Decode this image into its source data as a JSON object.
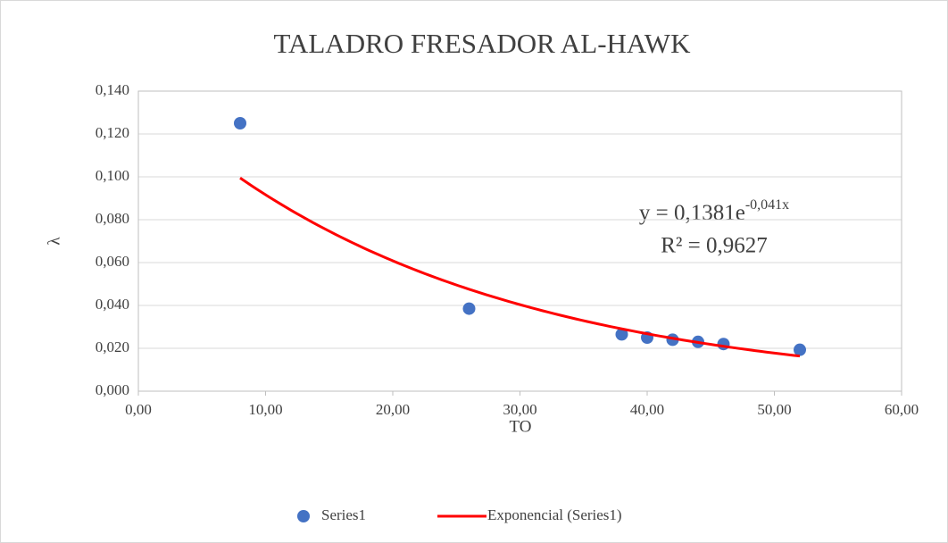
{
  "chart_data": {
    "type": "scatter",
    "title": "TALADRO FRESADOR AL-HAWK",
    "x_label": "TO",
    "y_label": "λ",
    "series": [
      {
        "name": "Series1",
        "color": "#4472c4",
        "x": [
          8,
          26,
          38,
          40,
          42,
          44,
          46,
          52
        ],
        "values": [
          0.125,
          0.0385,
          0.0265,
          0.025,
          0.024,
          0.023,
          0.022,
          0.0193
        ]
      }
    ],
    "trendline": {
      "name": "Exponencial (Series1)",
      "color": "#ff0000",
      "type": "exponential",
      "a": 0.1381,
      "b": -0.041,
      "equation": "y = 0,1381e",
      "equation_exponent": "-0,041x",
      "r_squared_label": "R² = 0,9627"
    },
    "xlim": [
      0,
      60
    ],
    "xticks": [
      {
        "value": 0,
        "label": "0,00"
      },
      {
        "value": 10,
        "label": "10,00"
      },
      {
        "value": 20,
        "label": "20,00"
      },
      {
        "value": 30,
        "label": "30,00"
      },
      {
        "value": 40,
        "label": "40,00"
      },
      {
        "value": 50,
        "label": "50,00"
      },
      {
        "value": 60,
        "label": "60,00"
      }
    ],
    "ylim": [
      0,
      0.14
    ],
    "yticks": [
      {
        "value": 0,
        "label": "0,000"
      },
      {
        "value": 0.02,
        "label": "0,020"
      },
      {
        "value": 0.04,
        "label": "0,040"
      },
      {
        "value": 0.06,
        "label": "0,060"
      },
      {
        "value": 0.08,
        "label": "0,080"
      },
      {
        "value": 0.1,
        "label": "0,100"
      },
      {
        "value": 0.12,
        "label": "0,120"
      },
      {
        "value": 0.14,
        "label": "0,140"
      }
    ],
    "grid": true,
    "legend": "bottom"
  }
}
